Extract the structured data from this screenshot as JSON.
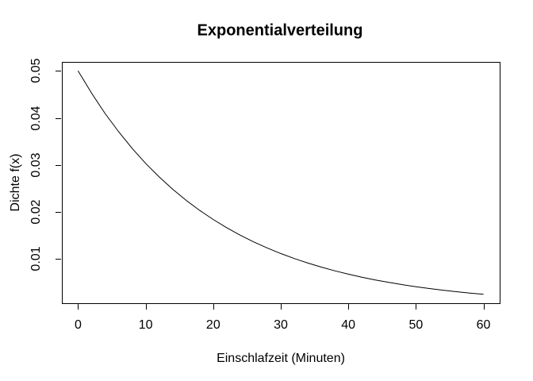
{
  "chart_data": {
    "type": "line",
    "title": "Exponentialverteilung",
    "xlabel": "Einschlafzeit (Minuten)",
    "ylabel": "Dichte f(x)",
    "x": [
      0,
      2,
      4,
      6,
      8,
      10,
      12,
      14,
      16,
      18,
      20,
      22,
      24,
      26,
      28,
      30,
      32,
      34,
      36,
      38,
      40,
      42,
      44,
      46,
      48,
      50,
      52,
      54,
      56,
      58,
      60
    ],
    "y": [
      0.05,
      0.045242,
      0.040937,
      0.037041,
      0.033516,
      0.030327,
      0.027441,
      0.024829,
      0.022466,
      0.020328,
      0.018394,
      0.016644,
      0.01506,
      0.013627,
      0.01233,
      0.011157,
      0.010095,
      0.009134,
      0.008265,
      0.007479,
      0.006767,
      0.006123,
      0.00554,
      0.005013,
      0.004536,
      0.004104,
      0.003714,
      0.00336,
      0.003041,
      0.002751,
      0.002489
    ],
    "xticks": {
      "values": [
        0,
        10,
        20,
        30,
        40,
        50,
        60
      ],
      "labels": [
        "0",
        "10",
        "20",
        "30",
        "40",
        "50",
        "60"
      ]
    },
    "yticks": {
      "values": [
        0.01,
        0.02,
        0.03,
        0.04,
        0.05
      ],
      "labels": [
        "0.01",
        "0.02",
        "0.03",
        "0.04",
        "0.05"
      ]
    },
    "xlim": [
      -2.4,
      62.4
    ],
    "ylim": [
      0.00059,
      0.0519
    ],
    "grid": false,
    "legend": null,
    "line_color": "#000000",
    "axis_color": "#000000",
    "background": "#FFFFFF"
  }
}
